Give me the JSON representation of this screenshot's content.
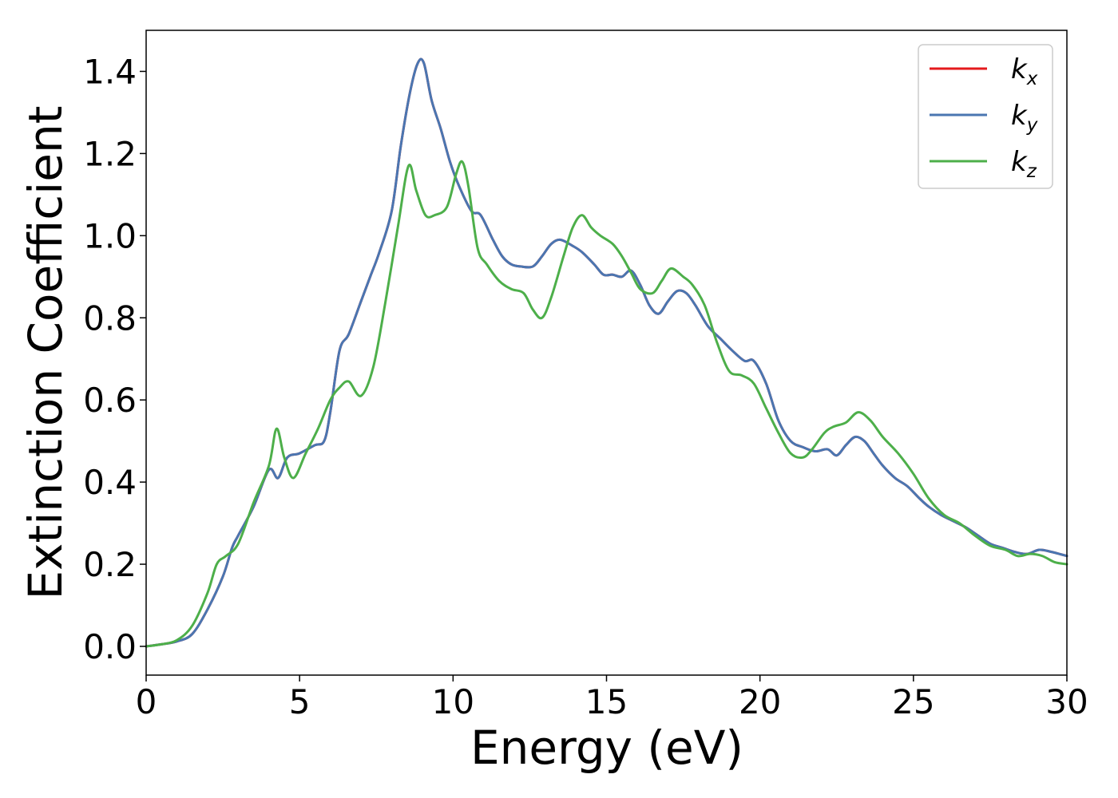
{
  "chart_data": {
    "type": "line",
    "title": "",
    "xlabel": "Energy (eV)",
    "ylabel": "Extinction Coefficient",
    "xlim": [
      0,
      30
    ],
    "ylim": [
      -0.07,
      1.5
    ],
    "xticks": [
      0,
      5,
      10,
      15,
      20,
      25,
      30
    ],
    "xtick_labels": [
      "0",
      "5",
      "10",
      "15",
      "20",
      "25",
      "30"
    ],
    "yticks": [
      0.0,
      0.2,
      0.4,
      0.6,
      0.8,
      1.0,
      1.2,
      1.4
    ],
    "ytick_labels": [
      "0.0",
      "0.2",
      "0.4",
      "0.6",
      "0.8",
      "1.0",
      "1.2",
      "1.4"
    ],
    "grid": false,
    "legend_position": "top-right",
    "series": [
      {
        "name_base": "k",
        "name_sub": "x",
        "color": "#e41a1c",
        "x": [
          0,
          0.5,
          1,
          1.5,
          2,
          2.5,
          2.8,
          3,
          3.5,
          4,
          4.3,
          4.6,
          5,
          5.5,
          5.8,
          6,
          6.3,
          6.6,
          7,
          7.3,
          7.6,
          8,
          8.3,
          8.6,
          8.85,
          9.05,
          9.3,
          9.6,
          9.9,
          10.2,
          10.6,
          10.9,
          11.3,
          11.6,
          11.9,
          12.2,
          12.6,
          12.9,
          13.2,
          13.5,
          13.9,
          14.2,
          14.6,
          14.9,
          15.2,
          15.5,
          15.8,
          16.1,
          16.4,
          16.7,
          17.0,
          17.3,
          17.6,
          17.9,
          18.3,
          18.7,
          19.1,
          19.5,
          19.8,
          20.2,
          20.6,
          21.0,
          21.4,
          21.8,
          22.2,
          22.5,
          22.8,
          23.1,
          23.4,
          23.7,
          24.0,
          24.4,
          24.8,
          25.2,
          25.5,
          25.9,
          26.3,
          26.7,
          27.1,
          27.5,
          27.9,
          28.3,
          28.7,
          29.1,
          29.5,
          30
        ],
        "y": [
          0.0,
          0.005,
          0.012,
          0.03,
          0.09,
          0.17,
          0.24,
          0.27,
          0.34,
          0.43,
          0.41,
          0.46,
          0.47,
          0.49,
          0.5,
          0.57,
          0.72,
          0.76,
          0.84,
          0.9,
          0.96,
          1.06,
          1.22,
          1.35,
          1.42,
          1.42,
          1.33,
          1.26,
          1.18,
          1.12,
          1.06,
          1.05,
          0.99,
          0.95,
          0.93,
          0.925,
          0.925,
          0.95,
          0.98,
          0.99,
          0.975,
          0.96,
          0.93,
          0.905,
          0.905,
          0.9,
          0.915,
          0.88,
          0.83,
          0.81,
          0.84,
          0.865,
          0.86,
          0.83,
          0.78,
          0.75,
          0.72,
          0.695,
          0.695,
          0.64,
          0.55,
          0.5,
          0.485,
          0.475,
          0.48,
          0.465,
          0.49,
          0.51,
          0.5,
          0.47,
          0.44,
          0.41,
          0.39,
          0.36,
          0.34,
          0.32,
          0.305,
          0.29,
          0.27,
          0.25,
          0.24,
          0.23,
          0.225,
          0.235,
          0.23,
          0.22
        ]
      },
      {
        "name_base": "k",
        "name_sub": "y",
        "color": "#4a76b1",
        "x": [
          0,
          0.5,
          1,
          1.5,
          2,
          2.5,
          2.8,
          3,
          3.5,
          4,
          4.3,
          4.6,
          5,
          5.5,
          5.8,
          6,
          6.3,
          6.6,
          7,
          7.3,
          7.6,
          8,
          8.3,
          8.6,
          8.85,
          9.05,
          9.3,
          9.6,
          9.9,
          10.2,
          10.6,
          10.9,
          11.3,
          11.6,
          11.9,
          12.2,
          12.6,
          12.9,
          13.2,
          13.5,
          13.9,
          14.2,
          14.6,
          14.9,
          15.2,
          15.5,
          15.8,
          16.1,
          16.4,
          16.7,
          17.0,
          17.3,
          17.6,
          17.9,
          18.3,
          18.7,
          19.1,
          19.5,
          19.8,
          20.2,
          20.6,
          21.0,
          21.4,
          21.8,
          22.2,
          22.5,
          22.8,
          23.1,
          23.4,
          23.7,
          24.0,
          24.4,
          24.8,
          25.2,
          25.5,
          25.9,
          26.3,
          26.7,
          27.1,
          27.5,
          27.9,
          28.3,
          28.7,
          29.1,
          29.5,
          30
        ],
        "y": [
          0.0,
          0.005,
          0.012,
          0.03,
          0.09,
          0.17,
          0.24,
          0.27,
          0.34,
          0.43,
          0.41,
          0.46,
          0.47,
          0.49,
          0.5,
          0.57,
          0.72,
          0.76,
          0.84,
          0.9,
          0.96,
          1.06,
          1.22,
          1.35,
          1.42,
          1.42,
          1.33,
          1.26,
          1.18,
          1.12,
          1.06,
          1.05,
          0.99,
          0.95,
          0.93,
          0.925,
          0.925,
          0.95,
          0.98,
          0.99,
          0.975,
          0.96,
          0.93,
          0.905,
          0.905,
          0.9,
          0.915,
          0.88,
          0.83,
          0.81,
          0.84,
          0.865,
          0.86,
          0.83,
          0.78,
          0.75,
          0.72,
          0.695,
          0.695,
          0.64,
          0.55,
          0.5,
          0.485,
          0.475,
          0.48,
          0.465,
          0.49,
          0.51,
          0.5,
          0.47,
          0.44,
          0.41,
          0.39,
          0.36,
          0.34,
          0.32,
          0.305,
          0.29,
          0.27,
          0.25,
          0.24,
          0.23,
          0.225,
          0.235,
          0.23,
          0.22
        ]
      },
      {
        "name_base": "k",
        "name_sub": "z",
        "color": "#4daf4a",
        "x": [
          0,
          0.5,
          1,
          1.5,
          2,
          2.3,
          2.6,
          3,
          3.5,
          4,
          4.25,
          4.5,
          4.8,
          5.2,
          5.6,
          6.0,
          6.3,
          6.6,
          7.0,
          7.4,
          7.8,
          8.2,
          8.55,
          8.8,
          9.1,
          9.4,
          9.8,
          10.1,
          10.3,
          10.5,
          10.8,
          11.1,
          11.5,
          11.9,
          12.3,
          12.6,
          12.9,
          13.2,
          13.6,
          13.9,
          14.2,
          14.5,
          14.8,
          15.2,
          15.5,
          15.8,
          16.1,
          16.5,
          16.8,
          17.1,
          17.5,
          17.8,
          18.2,
          18.6,
          19.0,
          19.4,
          19.8,
          20.2,
          20.6,
          21.0,
          21.4,
          21.7,
          22.1,
          22.4,
          22.8,
          23.2,
          23.6,
          24.0,
          24.5,
          25.0,
          25.5,
          26.0,
          26.5,
          27.0,
          27.5,
          28.0,
          28.4,
          28.8,
          29.2,
          29.6,
          30
        ],
        "y": [
          0.0,
          0.005,
          0.015,
          0.05,
          0.13,
          0.2,
          0.22,
          0.25,
          0.35,
          0.44,
          0.53,
          0.46,
          0.41,
          0.47,
          0.53,
          0.6,
          0.63,
          0.645,
          0.61,
          0.68,
          0.84,
          1.02,
          1.17,
          1.11,
          1.05,
          1.05,
          1.07,
          1.15,
          1.18,
          1.12,
          0.97,
          0.93,
          0.89,
          0.87,
          0.86,
          0.82,
          0.8,
          0.85,
          0.95,
          1.02,
          1.05,
          1.02,
          1.0,
          0.98,
          0.95,
          0.91,
          0.87,
          0.86,
          0.89,
          0.92,
          0.9,
          0.88,
          0.83,
          0.74,
          0.67,
          0.66,
          0.64,
          0.58,
          0.52,
          0.47,
          0.46,
          0.48,
          0.52,
          0.535,
          0.545,
          0.57,
          0.55,
          0.51,
          0.47,
          0.42,
          0.36,
          0.32,
          0.3,
          0.27,
          0.245,
          0.235,
          0.22,
          0.225,
          0.22,
          0.205,
          0.2
        ]
      }
    ]
  }
}
